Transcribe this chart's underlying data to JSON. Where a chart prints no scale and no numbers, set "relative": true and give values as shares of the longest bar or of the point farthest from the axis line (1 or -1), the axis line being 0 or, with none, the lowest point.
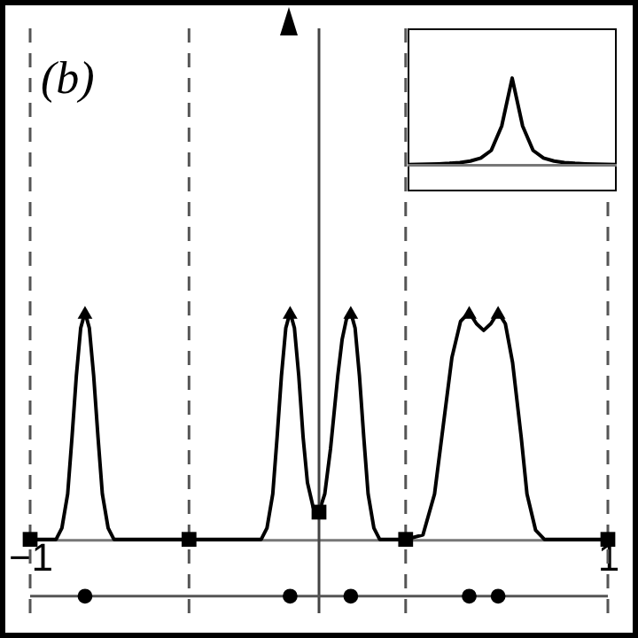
{
  "chart_data": [
    {
      "type": "line",
      "title": "(b)",
      "relative": true,
      "xlim": [
        -1,
        1
      ],
      "xticks": [
        -1,
        1
      ],
      "tick_labels": "x",
      "series": [
        {
          "color": "#000000",
          "marker": "none",
          "x": [
            -1,
            -0.91,
            -0.89,
            -0.87,
            -0.855,
            -0.84,
            -0.825,
            -0.81,
            -0.795,
            -0.78,
            -0.765,
            -0.75,
            -0.73,
            -0.71,
            -0.45,
            -0.2,
            -0.18,
            -0.16,
            -0.145,
            -0.13,
            -0.115,
            -0.1,
            -0.085,
            -0.07,
            -0.055,
            -0.04,
            -0.02,
            0,
            0.02,
            0.04,
            0.065,
            0.08,
            0.095,
            0.11,
            0.125,
            0.14,
            0.155,
            0.17,
            0.19,
            0.21,
            0.3,
            0.36,
            0.4,
            0.43,
            0.46,
            0.49,
            0.52,
            0.545,
            0.57,
            0.595,
            0.62,
            0.645,
            0.67,
            0.7,
            0.72,
            0.75,
            0.78,
            1
          ],
          "values": [
            0,
            0,
            0.05,
            0.2,
            0.45,
            0.72,
            0.93,
            1,
            0.93,
            0.72,
            0.45,
            0.2,
            0.05,
            0,
            0,
            0,
            0.05,
            0.2,
            0.45,
            0.72,
            0.93,
            1,
            0.93,
            0.72,
            0.45,
            0.25,
            0.14,
            0.12,
            0.2,
            0.4,
            0.72,
            0.88,
            0.97,
            1,
            0.93,
            0.72,
            0.45,
            0.2,
            0.05,
            0,
            0,
            0.02,
            0.2,
            0.5,
            0.8,
            0.96,
            1,
            0.95,
            0.92,
            0.95,
            1,
            0.95,
            0.78,
            0.45,
            0.2,
            0.04,
            0,
            0
          ]
        },
        {
          "type": "scatter",
          "color": "#000000",
          "marker": "triangle",
          "x": [
            -0.81,
            -0.1,
            0.11,
            0.52,
            0.62
          ],
          "values": [
            1,
            1,
            1,
            1,
            1
          ]
        },
        {
          "type": "scatter",
          "color": "#000000",
          "marker": "square",
          "x": [
            -1,
            -0.45,
            0,
            0.3,
            1
          ],
          "values": [
            0,
            0,
            0.12,
            0,
            0
          ]
        },
        {
          "type": "scatter",
          "color": "#000000",
          "marker": "circle",
          "x": [
            -0.81,
            -0.1,
            0.11,
            0.52,
            0.62
          ],
          "values": [
            -0.25,
            -0.25,
            -0.25,
            -0.25,
            -0.25
          ]
        }
      ],
      "ref_lines": [
        {
          "axis": "x",
          "value": -1,
          "line_style": "dashed",
          "color": "#555555"
        },
        {
          "axis": "x",
          "value": -0.45,
          "line_style": "dashed",
          "color": "#555555"
        },
        {
          "axis": "x",
          "value": 0.3,
          "line_style": "dashed",
          "color": "#555555"
        },
        {
          "axis": "x",
          "value": 1,
          "line_style": "dashed",
          "color": "#555555"
        },
        {
          "axis": "x",
          "value": 0,
          "line_style": "solid",
          "color": "#444444"
        },
        {
          "axis": "y",
          "value": -0.25,
          "line_style": "solid",
          "color": "#555555"
        }
      ]
    },
    {
      "type": "line",
      "relative": true,
      "categories": [
        null,
        null,
        null,
        null,
        null,
        null,
        null,
        null,
        null,
        null,
        null,
        null,
        null,
        null,
        null,
        null,
        null,
        null,
        null,
        null,
        null
      ],
      "series": [
        {
          "color": "#000000",
          "marker": "none",
          "values": [
            0.008,
            0.01,
            0.012,
            0.016,
            0.022,
            0.031,
            0.048,
            0.083,
            0.17,
            0.45,
            1,
            0.45,
            0.17,
            0.083,
            0.048,
            0.031,
            0.022,
            0.016,
            0.012,
            0.01,
            0.008
          ]
        }
      ],
      "ref_lines": [
        {
          "axis": "y",
          "value": 0,
          "line_style": "solid",
          "color": "#777777"
        }
      ]
    }
  ]
}
